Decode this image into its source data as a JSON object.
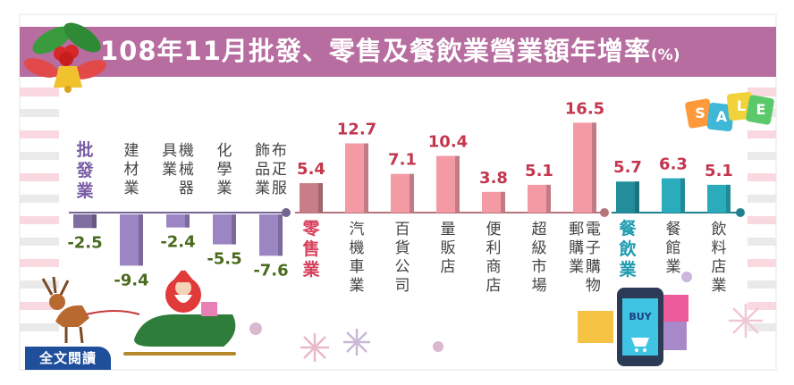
{
  "page": {
    "title_main": "108年11月批發、零售及餐飲業營業額年增率",
    "title_unit": "(%)",
    "full_text_button": "全文閱讀",
    "sale_tag": [
      "S",
      "A",
      "L",
      "E"
    ],
    "buy_label": "BUY",
    "colors": {
      "title_bar": "#b76d9f",
      "wholesale": "#9b85c2",
      "retail": "#f39aa5",
      "food": "#2bacbd",
      "wholesale_value_text": "#4a6b1e",
      "retail_value_text": "#c4364d",
      "food_value_text": "#c4364d"
    }
  },
  "chart_data": {
    "type": "bar",
    "title": "108年11月批發、零售及餐飲業營業額年增率(%)",
    "groups": [
      {
        "name": "批發業",
        "total": -2.5,
        "categories": [
          "建材業",
          "機械器具業",
          "化學業",
          "布疋服飾品業"
        ],
        "values": [
          -9.4,
          -2.4,
          -5.5,
          -7.6
        ]
      },
      {
        "name": "零售業",
        "total": 5.4,
        "categories": [
          "汽機車業",
          "百貨公司",
          "量販店",
          "便利商店",
          "超級市場",
          "電子購物郵購業"
        ],
        "values": [
          12.7,
          7.1,
          10.4,
          3.8,
          5.1,
          16.5
        ]
      },
      {
        "name": "餐飲業",
        "total": 5.7,
        "categories": [
          "餐館業",
          "飲料店業"
        ],
        "values": [
          6.3,
          5.1
        ]
      }
    ]
  }
}
